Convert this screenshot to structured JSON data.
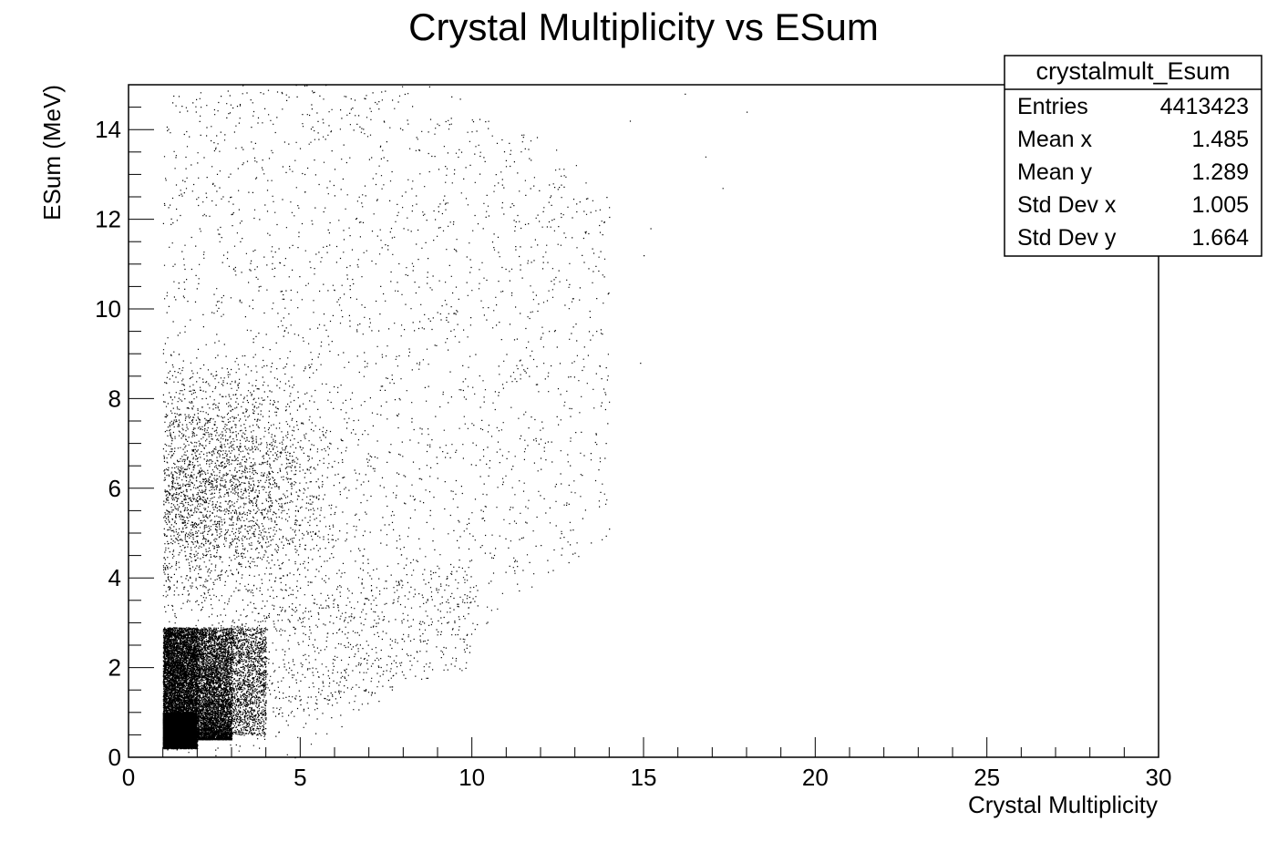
{
  "chart_data": {
    "type": "scatter",
    "title": "Crystal Multiplicity vs ESum",
    "xlabel": "Crystal Multiplicity",
    "ylabel": "ESum (MeV)",
    "xlim": [
      0,
      30
    ],
    "ylim": [
      0,
      15
    ],
    "xticks": [
      0,
      5,
      10,
      15,
      20,
      25,
      30
    ],
    "yticks": [
      0,
      2,
      4,
      6,
      8,
      10,
      12,
      14
    ],
    "xtick_labels": [
      "0",
      "5",
      "10",
      "15",
      "20",
      "25",
      "30"
    ],
    "ytick_labels": [
      "0",
      "2",
      "4",
      "6",
      "8",
      "10",
      "12",
      "14"
    ],
    "grid": false,
    "marker_color": "#000000",
    "density_regions": [
      {
        "x": [
          1.0,
          2.0
        ],
        "y": [
          0.2,
          1.0
        ],
        "density": "saturated"
      },
      {
        "x": [
          1.0,
          2.0
        ],
        "y": [
          1.0,
          2.9
        ],
        "density": "very high"
      },
      {
        "x": [
          2.0,
          3.0
        ],
        "y": [
          0.4,
          2.9
        ],
        "density": "high"
      },
      {
        "x": [
          3.0,
          4.0
        ],
        "y": [
          0.5,
          3.0
        ],
        "density": "medium"
      },
      {
        "x": [
          1.0,
          8.0
        ],
        "y": [
          3.0,
          8.0
        ],
        "density": "low"
      },
      {
        "x": [
          1.0,
          14.0
        ],
        "y": [
          0.0,
          15.0
        ],
        "density": "sparse"
      }
    ]
  },
  "stats_box": {
    "title": "crystalmult_Esum",
    "rows": [
      {
        "label": "Entries",
        "value": "4413423"
      },
      {
        "label": "Mean x",
        "value": "1.485"
      },
      {
        "label": "Mean y",
        "value": "1.289"
      },
      {
        "label": "Std Dev x",
        "value": "1.005"
      },
      {
        "label": "Std Dev y",
        "value": "1.664"
      }
    ]
  }
}
